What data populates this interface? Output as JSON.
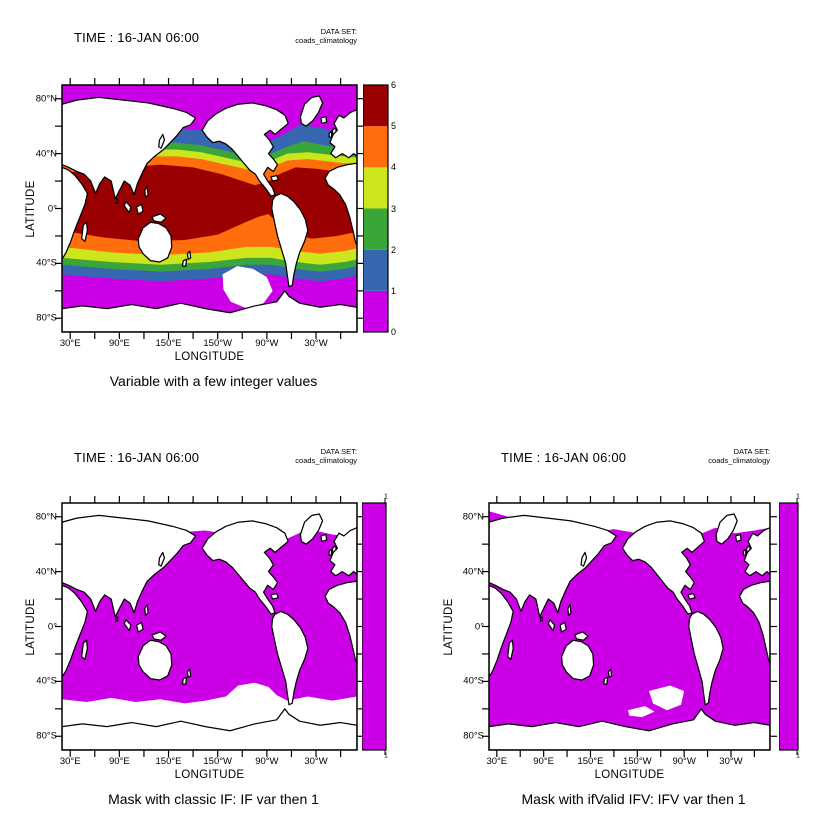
{
  "figure": {
    "background": "#ffffff",
    "tool_style": "Ferret-style multi-panel world map plot"
  },
  "chart_data": [
    {
      "type": "heatmap",
      "id": "integer-variable",
      "time": "TIME : 16-JAN 06:00",
      "dataset_heading": "DATA SET:",
      "dataset": "coads_climatology",
      "title": "Variable with a few integer values",
      "xlabel": "LONGITUDE",
      "ylabel": "LATITUDE",
      "x_ticks": [
        "30°E",
        "90°E",
        "150°E",
        "150°W",
        "90°W",
        "30°W"
      ],
      "y_ticks": [
        "80°N",
        "40°N",
        "0°",
        "40°S",
        "80°S"
      ],
      "x_range": "20°E eastward around the globe (Pacific-centered)",
      "y_range": "90°S to 90°N",
      "projection": "equirectangular world map, land masked white with black coastlines",
      "legend_position": "right colorbar",
      "mode": "banded",
      "colorbar_levels": [
        0,
        1,
        2,
        3,
        4,
        5,
        6
      ],
      "colorbar_colors": [
        "#CC00E6",
        "#3767B1",
        "#3AA63A",
        "#CCE51D",
        "#FF6D0D",
        "#9B0000"
      ],
      "bands": [
        {
          "value_range": "5-6",
          "color": "#9B0000",
          "where": "tropics approx 25°N-20°S, widest in the west Pacific warm pool"
        },
        {
          "value_range": "4-5",
          "color": "#FF6D0D",
          "where": "approx 38-25°N and 20-33°S, wedge along equatorial east Pacific"
        },
        {
          "value_range": "3-4",
          "color": "#CCE51D",
          "where": "approx 43-38°N and 33-40°S"
        },
        {
          "value_range": "2-3",
          "color": "#3AA63A",
          "where": "approx 49-43°N and 40-46°S"
        },
        {
          "value_range": "1-2",
          "color": "#3767B1",
          "where": "approx 56-49°N and 46-53°S"
        },
        {
          "value_range": "0-1",
          "color": "#CC00E6",
          "where": "poleward of approx 56°N and 53°S"
        }
      ],
      "missing_data": "white over land and a Southern Ocean patch near 150°W-90°W south of 45°S"
    },
    {
      "type": "heatmap",
      "id": "mask-classic-if",
      "time": "TIME : 16-JAN 06:00",
      "dataset_heading": "DATA SET:",
      "dataset": "coads_climatology",
      "title": "Mask with classic IF: IF var then 1",
      "xlabel": "LONGITUDE",
      "ylabel": "LATITUDE",
      "x_ticks": [
        "30°E",
        "90°E",
        "150°E",
        "150°W",
        "90°W",
        "30°W"
      ],
      "y_ticks": [
        "80°N",
        "40°N",
        "0°",
        "40°S",
        "80°S"
      ],
      "x_range": "20°E eastward around the globe (Pacific-centered)",
      "y_range": "90°S to 90°N",
      "projection": "equirectangular world map, land masked white with black coastlines",
      "legend_position": "right colorbar",
      "mode": "mask",
      "colorbar_levels": [
        1,
        1
      ],
      "colorbar_colors": [
        "#CC00E6"
      ],
      "field": "mask = 1 (magenta) over valid ocean points; white over land, Arctic, and Southern Ocean south of approx 53°S"
    },
    {
      "type": "heatmap",
      "id": "mask-ifvalid-ifv",
      "time": "TIME : 16-JAN 06:00",
      "dataset_heading": "DATA SET:",
      "dataset": "coads_climatology",
      "title": "Mask with ifValid IFV: IFV var then 1",
      "xlabel": "LONGITUDE",
      "ylabel": "LATITUDE",
      "x_ticks": [
        "30°E",
        "90°E",
        "150°E",
        "150°W",
        "90°W",
        "30°W"
      ],
      "y_ticks": [
        "80°N",
        "40°N",
        "0°",
        "40°S",
        "80°S"
      ],
      "x_range": "20°E eastward around the globe (Pacific-centered)",
      "y_range": "90°S to 90°N",
      "projection": "equirectangular world map, land masked white with black coastlines",
      "legend_position": "right colorbar",
      "mode": "mask_ifv",
      "colorbar_levels": [
        1,
        1
      ],
      "colorbar_colors": [
        "#CC00E6"
      ],
      "field": "mask = 1 (magenta) over valid ocean points extending to the Antarctic coast; white patches remain in the far South Pacific"
    }
  ]
}
